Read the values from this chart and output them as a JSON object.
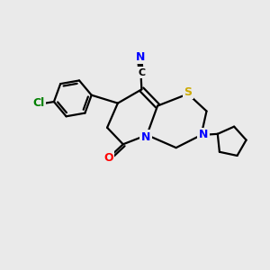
{
  "background_color": "#eaeaea",
  "bond_color": "#000000",
  "atom_colors": {
    "N": "#0000ff",
    "S": "#ccaa00",
    "O": "#ff0000",
    "Cl": "#008000",
    "C": "#000000"
  },
  "figsize": [
    3.0,
    3.0
  ],
  "dpi": 100
}
